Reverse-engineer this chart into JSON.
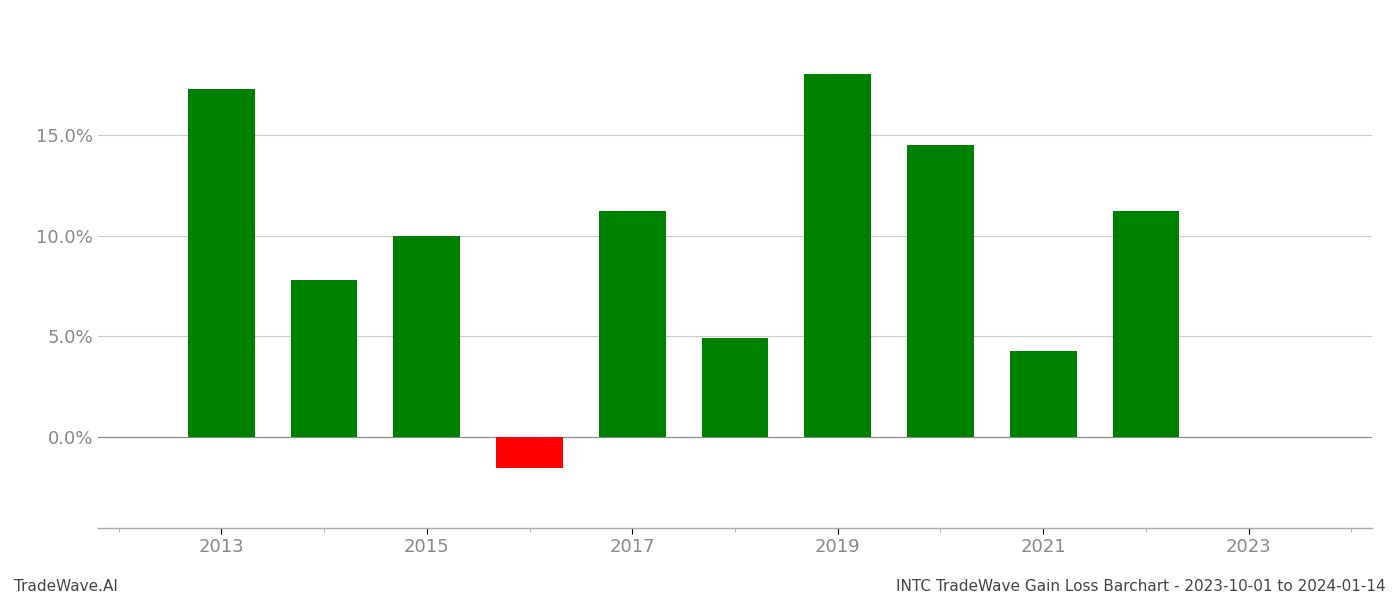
{
  "years": [
    2013,
    2014,
    2015,
    2016,
    2017,
    2018,
    2019,
    2020,
    2021,
    2022
  ],
  "values": [
    0.173,
    0.078,
    0.1,
    -0.015,
    0.112,
    0.049,
    0.18,
    0.145,
    0.043,
    0.112
  ],
  "bar_colors": [
    "#008000",
    "#008000",
    "#008000",
    "#ff0000",
    "#008000",
    "#008000",
    "#008000",
    "#008000",
    "#008000",
    "#008000"
  ],
  "title": "",
  "xlabel": "",
  "ylabel": "",
  "ylim": [
    -0.045,
    0.205
  ],
  "yticks": [
    0.0,
    0.05,
    0.1,
    0.15
  ],
  "xticks": [
    2013,
    2015,
    2017,
    2019,
    2021,
    2023
  ],
  "xlim": [
    2011.8,
    2024.2
  ],
  "footer_left": "TradeWave.AI",
  "footer_right": "INTC TradeWave Gain Loss Barchart - 2023-10-01 to 2024-01-14",
  "bar_width": 0.65,
  "grid_color": "#cccccc",
  "background_color": "#ffffff",
  "text_color": "#888888",
  "footer_fontsize": 11,
  "tick_fontsize": 13
}
